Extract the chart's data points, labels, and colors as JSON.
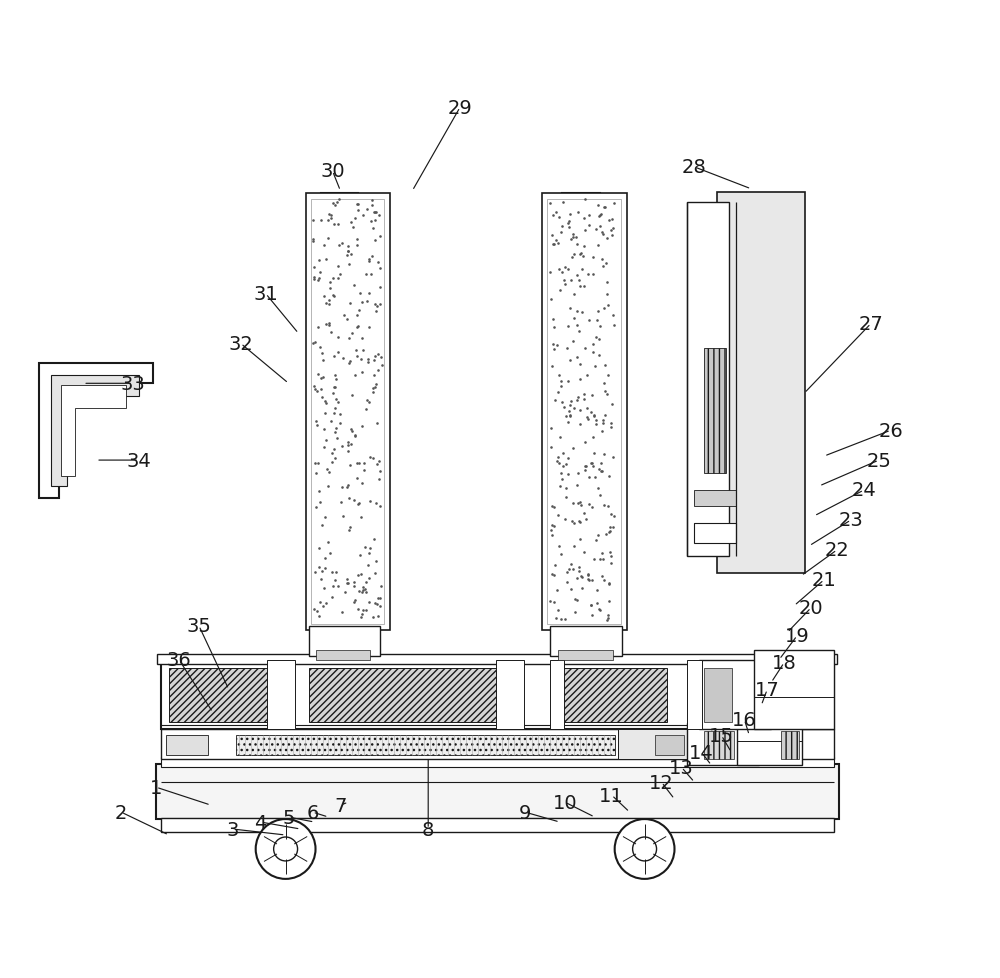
{
  "bg_color": "#ffffff",
  "line_color": "#1a1a1a",
  "label_color": "#1a1a1a",
  "label_fontsize": 14,
  "figsize": [
    10,
    9.79
  ],
  "dpi": 100,
  "xlim": [
    0,
    10
  ],
  "ylim": [
    0,
    9.79
  ]
}
